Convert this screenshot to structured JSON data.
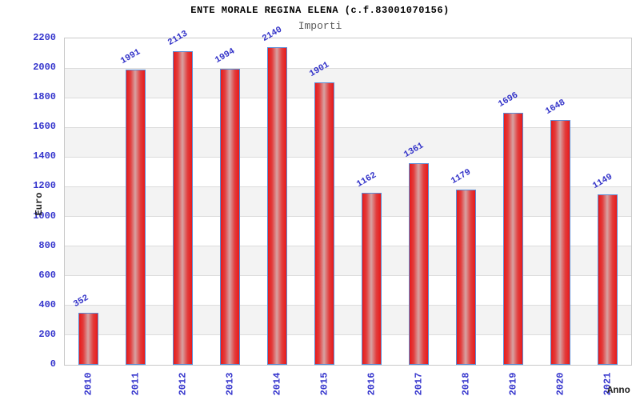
{
  "chart_data": {
    "type": "bar",
    "title": "ENTE MORALE REGINA ELENA (c.f.83001070156)",
    "subtitle": "Importi",
    "xlabel": "Anno",
    "ylabel": "Euro",
    "categories": [
      "2010",
      "2011",
      "2012",
      "2013",
      "2014",
      "2015",
      "2016",
      "2017",
      "2018",
      "2019",
      "2020",
      "2021"
    ],
    "values": [
      352,
      1991,
      2113,
      1994,
      2140,
      1901,
      1162,
      1361,
      1179,
      1696,
      1648,
      1149
    ],
    "ylim": [
      0,
      2200
    ],
    "ytick_step": 200,
    "yticks": [
      0,
      200,
      400,
      600,
      800,
      1000,
      1200,
      1400,
      1600,
      1800,
      2000,
      2200
    ],
    "grid": true,
    "legend": "none",
    "colors": {
      "bar_fill": "#e81a1a",
      "bar_highlight": "#d7a2a2",
      "bar_border": "#5b8dd6",
      "tick_text": "#3333cc",
      "value_text": "#3232c8",
      "title_text": "#000000",
      "subtitle_text": "#5a5a5a",
      "band_gray": "#f3f3f3",
      "gridline": "#dcdcdc",
      "plot_border": "#c9c9c9"
    }
  }
}
